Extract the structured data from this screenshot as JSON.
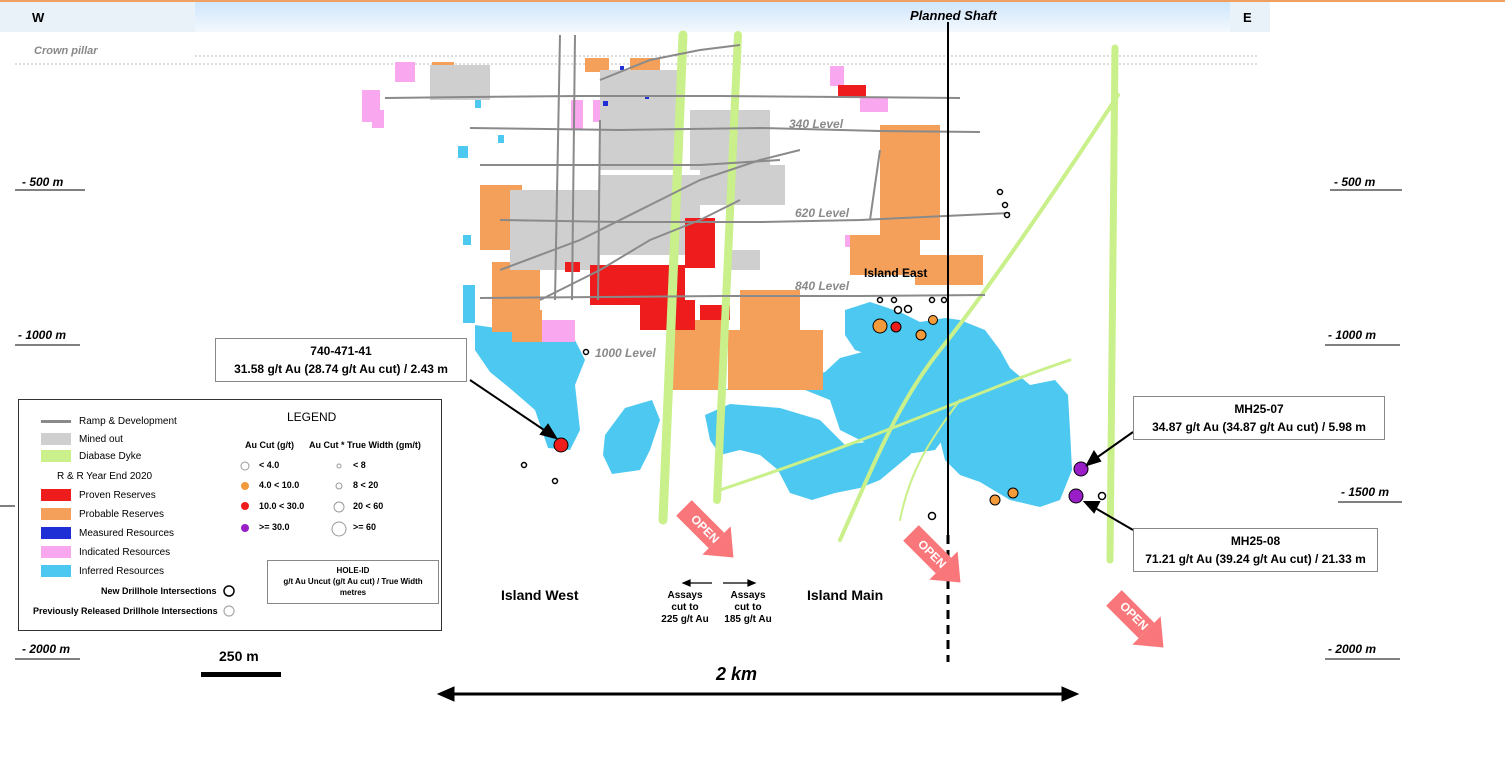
{
  "header": {
    "west": "W",
    "east": "E",
    "shaft": "Planned Shaft",
    "crown_pillar": "Crown pillar"
  },
  "depths": {
    "d500": "- 500 m",
    "d1000": "- 1000 m",
    "d1500": "- 1500 m",
    "d2000": "- 2000 m"
  },
  "levels": {
    "l340": "340 Level",
    "l620": "620 Level",
    "l840": "840 Level",
    "l1000": "1000 Level"
  },
  "zones": {
    "island_east": "Island East",
    "island_west": "Island West",
    "island_main": "Island Main"
  },
  "callouts": {
    "c740": {
      "id": "740-471-41",
      "text": "31.58 g/t Au (28.74 g/t Au cut) / 2.43 m"
    },
    "mh2507": {
      "id": "MH25-07",
      "text": "34.87 g/t Au (34.87 g/t Au cut) / 5.98 m"
    },
    "mh2508": {
      "id": "MH25-08",
      "text": "71.21 g/t Au (39.24 g/t Au cut) / 21.33 m"
    }
  },
  "legend": {
    "title": "LEGEND",
    "ramp": "Ramp & Development",
    "mined": "Mined out",
    "dyke": "Diabase Dyke",
    "rr_title": "R & R Year End 2020",
    "proven": "Proven Reserves",
    "probable": "Probable Reserves",
    "measured": "Measured Resources",
    "indicated": "Indicated Resources",
    "inferred": "Inferred Resources",
    "au_cut_title": "Au Cut (g/t)",
    "au_width_title": "Au Cut * True Width (gm/t)",
    "g1": "< 4.0",
    "g2": "4.0 < 10.0",
    "g3": "10.0 < 30.0",
    "g4": ">= 30.0",
    "w1": "< 8",
    "w2": "8 < 20",
    "w3": "20 < 60",
    "w4": ">= 60",
    "hole_id": "HOLE-ID",
    "hole_desc": "g/t Au Uncut (g/t Au cut) / True Width",
    "hole_unit": "metres",
    "new_int": "New Drillhole Intersections",
    "prev_int": "Previously Released Drillhole Intersections"
  },
  "assays": {
    "left": [
      "Assays",
      "cut to",
      "225 g/t Au"
    ],
    "right": [
      "Assays",
      "cut to",
      "185 g/t Au"
    ]
  },
  "open_label": "OPEN",
  "scale": {
    "bar": "250 m",
    "span": "2 km"
  },
  "colors": {
    "proven": "#ee1c1c",
    "probable": "#f4a05a",
    "measured": "#1e2fd6",
    "indicated": "#f9a8f0",
    "inferred": "#4dc8f0",
    "mined": "#cfcfcf",
    "dyke": "#c9f08a",
    "ramp": "#8a8a8a",
    "open_arrow": "#f9777a"
  }
}
